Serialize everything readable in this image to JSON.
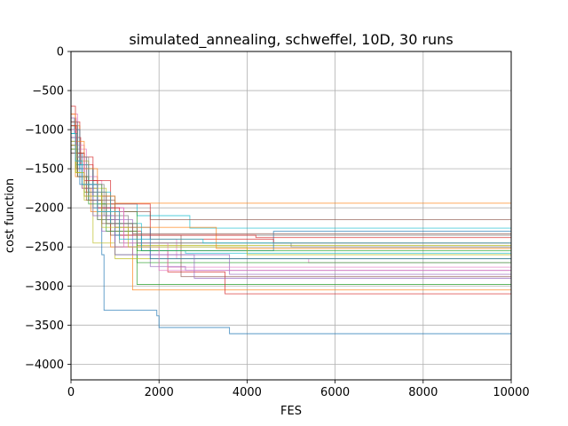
{
  "chart_data": {
    "type": "line",
    "title": "simulated_annealing, schweffel, 10D, 30 runs",
    "xlabel": "FES",
    "ylabel": "cost function",
    "xlim": [
      0,
      10000
    ],
    "ylim": [
      -4200,
      0
    ],
    "xticks": [
      0,
      2000,
      4000,
      6000,
      8000,
      10000
    ],
    "yticks": [
      0,
      -500,
      -1000,
      -1500,
      -2000,
      -2500,
      -3000,
      -3500,
      -4000
    ],
    "xtick_labels": [
      "0",
      "2000",
      "4000",
      "6000",
      "8000",
      "10000"
    ],
    "ytick_labels": [
      "0",
      "−500",
      "−1000",
      "−1500",
      "−2000",
      "−2500",
      "−3000",
      "−3500",
      "−4000"
    ],
    "grid": true,
    "colors": [
      "#1f77b4",
      "#ff7f0e",
      "#2ca02c",
      "#d62728",
      "#9467bd",
      "#8c564b",
      "#e377c2",
      "#7f7f7f",
      "#bcbd22",
      "#17becf"
    ],
    "series": [
      {
        "points": [
          [
            0,
            -850
          ],
          [
            80,
            -1050
          ],
          [
            150,
            -1300
          ],
          [
            250,
            -1600
          ],
          [
            400,
            -1900
          ],
          [
            700,
            -2600
          ],
          [
            750,
            -3310
          ],
          [
            1950,
            -3380
          ],
          [
            2000,
            -3530
          ],
          [
            3600,
            -3610
          ],
          [
            10000,
            -3610
          ]
        ]
      },
      {
        "points": [
          [
            0,
            -1000
          ],
          [
            100,
            -1400
          ],
          [
            250,
            -1750
          ],
          [
            450,
            -2050
          ],
          [
            900,
            -2500
          ],
          [
            1400,
            -3050
          ],
          [
            10000,
            -3050
          ]
        ]
      },
      {
        "points": [
          [
            0,
            -1100
          ],
          [
            120,
            -1500
          ],
          [
            300,
            -1800
          ],
          [
            600,
            -2150
          ],
          [
            1000,
            -2600
          ],
          [
            1500,
            -2980
          ],
          [
            10000,
            -2980
          ]
        ]
      },
      {
        "points": [
          [
            0,
            -700
          ],
          [
            100,
            -1100
          ],
          [
            220,
            -1450
          ],
          [
            500,
            -1850
          ],
          [
            900,
            -2300
          ],
          [
            1600,
            -2550
          ],
          [
            2200,
            -2820
          ],
          [
            3500,
            -3100
          ],
          [
            10000,
            -3120
          ]
        ]
      },
      {
        "points": [
          [
            0,
            -1200
          ],
          [
            150,
            -1600
          ],
          [
            400,
            -1900
          ],
          [
            700,
            -2300
          ],
          [
            1000,
            -2500
          ],
          [
            1800,
            -2750
          ],
          [
            2600,
            -2800
          ],
          [
            10000,
            -2800
          ]
        ]
      },
      {
        "points": [
          [
            0,
            -900
          ],
          [
            100,
            -1350
          ],
          [
            300,
            -1750
          ],
          [
            600,
            -2000
          ],
          [
            900,
            -2350
          ],
          [
            2500,
            -2880
          ],
          [
            10000,
            -2880
          ]
        ]
      },
      {
        "points": [
          [
            0,
            -800
          ],
          [
            150,
            -1250
          ],
          [
            350,
            -1650
          ],
          [
            700,
            -2000
          ],
          [
            1200,
            -2400
          ],
          [
            2400,
            -2650
          ],
          [
            5400,
            -2700
          ],
          [
            10000,
            -2700
          ]
        ]
      },
      {
        "points": [
          [
            0,
            -1150
          ],
          [
            120,
            -1500
          ],
          [
            300,
            -1850
          ],
          [
            600,
            -2150
          ],
          [
            1100,
            -2450
          ],
          [
            10000,
            -2620
          ]
        ]
      },
      {
        "points": [
          [
            0,
            -950
          ],
          [
            200,
            -1400
          ],
          [
            400,
            -1750
          ],
          [
            800,
            -2200
          ],
          [
            1500,
            -2480
          ],
          [
            10000,
            -2480
          ]
        ]
      },
      {
        "points": [
          [
            0,
            -1050
          ],
          [
            100,
            -1450
          ],
          [
            300,
            -1700
          ],
          [
            600,
            -1950
          ],
          [
            1500,
            -2100
          ],
          [
            2700,
            -2260
          ],
          [
            10000,
            -2260
          ]
        ]
      },
      {
        "points": [
          [
            0,
            -1300
          ],
          [
            200,
            -1700
          ],
          [
            500,
            -2000
          ],
          [
            1000,
            -2350
          ],
          [
            1600,
            -2550
          ],
          [
            4600,
            -2300
          ],
          [
            10000,
            -2300
          ]
        ]
      },
      {
        "points": [
          [
            0,
            -1250
          ],
          [
            100,
            -1600
          ],
          [
            350,
            -1800
          ],
          [
            700,
            -1950
          ],
          [
            1000,
            -1940
          ],
          [
            10000,
            -1940
          ]
        ]
      },
      {
        "points": [
          [
            0,
            -1000
          ],
          [
            150,
            -1300
          ],
          [
            300,
            -1500
          ],
          [
            500,
            -1700
          ],
          [
            700,
            -2050
          ],
          [
            1500,
            -2700
          ],
          [
            10000,
            -2700
          ]
        ]
      },
      {
        "points": [
          [
            0,
            -900
          ],
          [
            200,
            -1350
          ],
          [
            500,
            -1650
          ],
          [
            900,
            -1950
          ],
          [
            1800,
            -2400
          ],
          [
            4600,
            -2450
          ],
          [
            10000,
            -2450
          ]
        ]
      },
      {
        "points": [
          [
            0,
            -1100
          ],
          [
            150,
            -1500
          ],
          [
            400,
            -1850
          ],
          [
            800,
            -2150
          ],
          [
            1400,
            -2600
          ],
          [
            3600,
            -2850
          ],
          [
            10000,
            -2850
          ]
        ]
      },
      {
        "points": [
          [
            0,
            -1200
          ],
          [
            100,
            -1500
          ],
          [
            250,
            -1700
          ],
          [
            600,
            -1900
          ],
          [
            1000,
            -2050
          ],
          [
            1800,
            -2150
          ],
          [
            10000,
            -2150
          ]
        ]
      },
      {
        "points": [
          [
            0,
            -850
          ],
          [
            120,
            -1200
          ],
          [
            300,
            -1600
          ],
          [
            600,
            -2000
          ],
          [
            1200,
            -2450
          ],
          [
            2200,
            -2760
          ],
          [
            10000,
            -2760
          ]
        ]
      },
      {
        "points": [
          [
            0,
            -950
          ],
          [
            150,
            -1350
          ],
          [
            350,
            -1700
          ],
          [
            750,
            -2100
          ],
          [
            1300,
            -2350
          ],
          [
            10000,
            -2400
          ]
        ]
      },
      {
        "points": [
          [
            0,
            -1150
          ],
          [
            100,
            -1550
          ],
          [
            300,
            -1900
          ],
          [
            500,
            -2450
          ],
          [
            1000,
            -2650
          ],
          [
            10000,
            -2650
          ]
        ]
      },
      {
        "points": [
          [
            0,
            -1050
          ],
          [
            150,
            -1450
          ],
          [
            400,
            -1800
          ],
          [
            900,
            -2200
          ],
          [
            1600,
            -2550
          ],
          [
            2600,
            -2580
          ],
          [
            10000,
            -2580
          ]
        ]
      },
      {
        "points": [
          [
            0,
            -1000
          ],
          [
            200,
            -1500
          ],
          [
            500,
            -1850
          ],
          [
            1000,
            -2250
          ],
          [
            1800,
            -2650
          ],
          [
            10000,
            -2950
          ]
        ]
      },
      {
        "points": [
          [
            0,
            -800
          ],
          [
            100,
            -1150
          ],
          [
            300,
            -1500
          ],
          [
            600,
            -1850
          ],
          [
            1000,
            -2250
          ],
          [
            3300,
            -2520
          ],
          [
            10000,
            -2520
          ]
        ]
      },
      {
        "points": [
          [
            0,
            -1250
          ],
          [
            150,
            -1600
          ],
          [
            400,
            -1950
          ],
          [
            800,
            -2300
          ],
          [
            1500,
            -2550
          ],
          [
            10000,
            -2550
          ]
        ]
      },
      {
        "points": [
          [
            0,
            -950
          ],
          [
            120,
            -1300
          ],
          [
            300,
            -1650
          ],
          [
            600,
            -2000
          ],
          [
            1100,
            -2350
          ],
          [
            4200,
            -2380
          ],
          [
            10000,
            -2380
          ]
        ]
      },
      {
        "points": [
          [
            0,
            -1100
          ],
          [
            100,
            -1400
          ],
          [
            250,
            -1750
          ],
          [
            500,
            -2100
          ],
          [
            1000,
            -2600
          ],
          [
            2800,
            -2900
          ],
          [
            10000,
            -2900
          ]
        ]
      },
      {
        "points": [
          [
            0,
            -1300
          ],
          [
            150,
            -1600
          ],
          [
            350,
            -1900
          ],
          [
            700,
            -2200
          ],
          [
            1400,
            -2330
          ],
          [
            10000,
            -2330
          ]
        ]
      },
      {
        "points": [
          [
            0,
            -1000
          ],
          [
            100,
            -1350
          ],
          [
            300,
            -1700
          ],
          [
            600,
            -2050
          ],
          [
            1200,
            -2500
          ],
          [
            2000,
            -2800
          ],
          [
            10000,
            -2830
          ]
        ]
      },
      {
        "points": [
          [
            0,
            -900
          ],
          [
            150,
            -1350
          ],
          [
            400,
            -1800
          ],
          [
            800,
            -2200
          ],
          [
            1500,
            -2450
          ],
          [
            5000,
            -2500
          ],
          [
            10000,
            -2500
          ]
        ]
      },
      {
        "points": [
          [
            0,
            -1200
          ],
          [
            120,
            -1550
          ],
          [
            300,
            -1850
          ],
          [
            700,
            -2250
          ],
          [
            1300,
            -2500
          ],
          [
            4000,
            -2600
          ],
          [
            10000,
            -2600
          ]
        ]
      },
      {
        "points": [
          [
            0,
            -1050
          ],
          [
            100,
            -1400
          ],
          [
            250,
            -1700
          ],
          [
            600,
            -2050
          ],
          [
            1100,
            -2400
          ],
          [
            3000,
            -2450
          ],
          [
            10000,
            -2450
          ]
        ]
      }
    ]
  }
}
